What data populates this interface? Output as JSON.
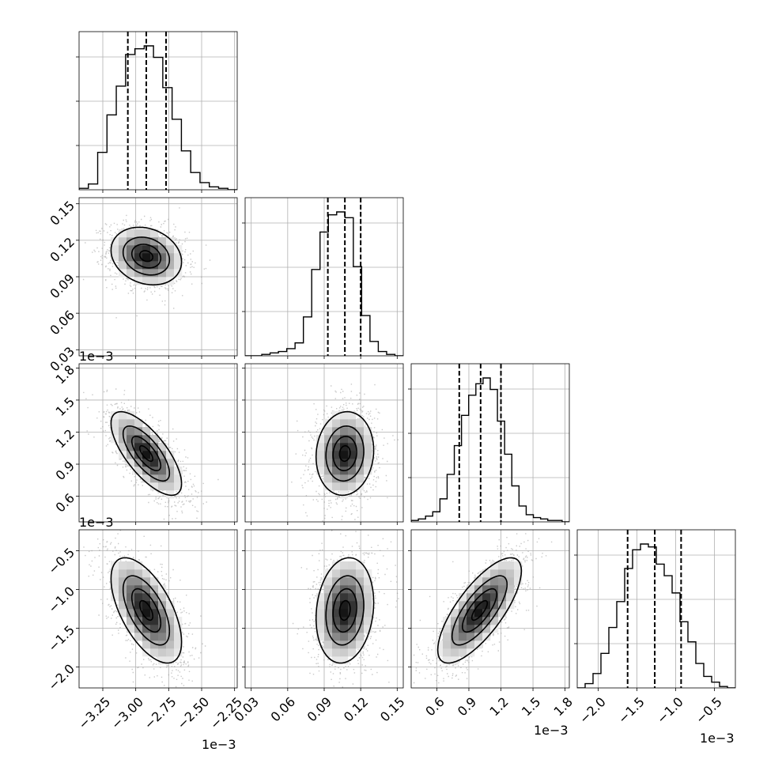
{
  "chart_data": {
    "type": "corner",
    "scale_tick": {
      "type": "line"
    },
    "params": [
      {
        "range": [
          -3.43,
          -2.23
        ],
        "ticks": [
          -3.25,
          -3.0,
          -2.75,
          -2.5,
          -2.25
        ],
        "tick_labels": [
          "−3.25",
          "−3.00",
          "−2.75",
          "−2.50",
          "−2.25"
        ],
        "offset_label": "1e−3",
        "quantiles": [
          -3.06,
          -2.92,
          -2.77
        ],
        "hist": [
          0.01,
          0.04,
          0.26,
          0.52,
          0.72,
          0.94,
          0.98,
          1.0,
          0.92,
          0.71,
          0.49,
          0.27,
          0.12,
          0.05,
          0.02,
          0.01,
          0.0
        ]
      },
      {
        "range": [
          0.025,
          0.155
        ],
        "ticks": [
          0.03,
          0.06,
          0.09,
          0.12,
          0.15
        ],
        "tick_labels": [
          "0.03",
          "0.06",
          "0.09",
          "0.12",
          "0.15"
        ],
        "quantiles": [
          0.093,
          0.107,
          0.12
        ],
        "hist": [
          0.0,
          0.0,
          0.01,
          0.02,
          0.03,
          0.05,
          0.09,
          0.27,
          0.6,
          0.86,
          0.98,
          1.0,
          0.96,
          0.62,
          0.28,
          0.1,
          0.03,
          0.01,
          0.0
        ]
      },
      {
        "range": [
          0.36,
          1.84
        ],
        "ticks": [
          0.6,
          0.9,
          1.2,
          1.5,
          1.8
        ],
        "tick_labels": [
          "0.6",
          "0.9",
          "1.2",
          "1.5",
          "1.8"
        ],
        "offset_label": "1e−3",
        "quantiles": [
          0.81,
          1.01,
          1.2
        ],
        "hist": [
          0.01,
          0.02,
          0.04,
          0.07,
          0.16,
          0.33,
          0.53,
          0.74,
          0.88,
          0.96,
          1.0,
          0.92,
          0.7,
          0.47,
          0.25,
          0.11,
          0.05,
          0.03,
          0.02,
          0.01,
          0.01,
          0.0
        ]
      },
      {
        "range": [
          -2.27,
          -0.23
        ],
        "ticks": [
          -2.0,
          -1.5,
          -1.0,
          -0.5
        ],
        "tick_labels": [
          "−2.0",
          "−1.5",
          "−1.0",
          "−0.5"
        ],
        "offset_label": "1e−3",
        "quantiles": [
          -1.62,
          -1.27,
          -0.93
        ],
        "hist": [
          0.0,
          0.03,
          0.1,
          0.24,
          0.42,
          0.6,
          0.83,
          0.96,
          1.0,
          0.98,
          0.86,
          0.78,
          0.66,
          0.46,
          0.32,
          0.17,
          0.08,
          0.04,
          0.01,
          0.0
        ]
      }
    ],
    "pairs": [
      {
        "row": 1,
        "col": 0,
        "mean": [
          -2.92,
          0.107
        ],
        "std": [
          0.13,
          0.0115
        ],
        "corr": -0.2,
        "contour_levels": [
          0.12,
          0.4,
          0.7,
          0.93
        ]
      },
      {
        "row": 2,
        "col": 0,
        "mean": [
          -2.92,
          1.0
        ],
        "std": [
          0.13,
          0.19
        ],
        "corr": -0.72,
        "contour_levels": [
          0.12,
          0.4,
          0.7,
          0.93
        ]
      },
      {
        "row": 2,
        "col": 1,
        "mean": [
          0.107,
          1.0
        ],
        "std": [
          0.0115,
          0.19
        ],
        "corr": 0.08,
        "contour_levels": [
          0.12,
          0.4,
          0.7,
          0.93
        ]
      },
      {
        "row": 3,
        "col": 0,
        "mean": [
          -2.92,
          -1.27
        ],
        "std": [
          0.13,
          0.33
        ],
        "corr": -0.6,
        "contour_levels": [
          0.12,
          0.4,
          0.7,
          0.93
        ]
      },
      {
        "row": 3,
        "col": 1,
        "mean": [
          0.107,
          -1.27
        ],
        "std": [
          0.0115,
          0.33
        ],
        "corr": 0.15,
        "contour_levels": [
          0.12,
          0.4,
          0.7,
          0.93
        ]
      },
      {
        "row": 3,
        "col": 2,
        "mean": [
          1.0,
          -1.27
        ],
        "std": [
          0.19,
          0.33
        ],
        "corr": 0.75,
        "contour_levels": [
          0.12,
          0.4,
          0.7,
          0.93
        ]
      }
    ],
    "grid": true
  }
}
